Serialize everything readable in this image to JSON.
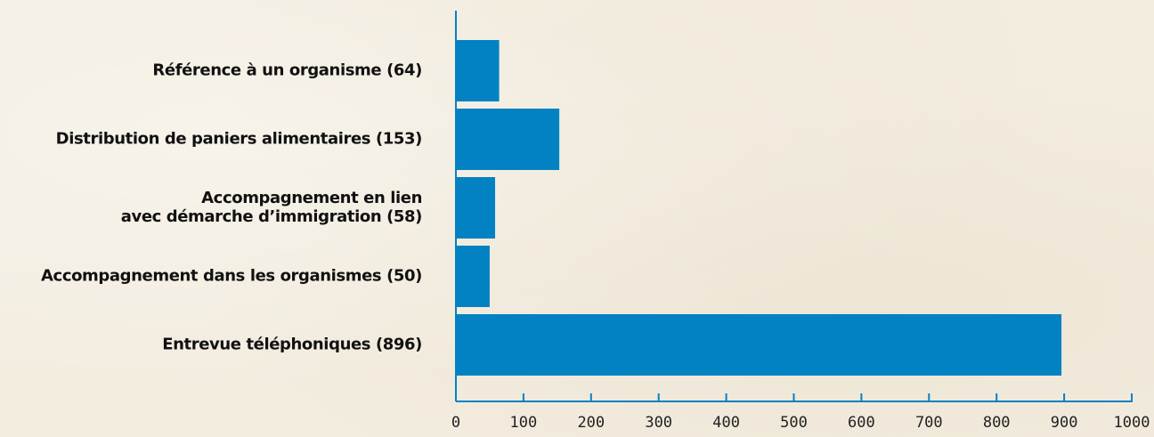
{
  "chart_data": {
    "type": "bar",
    "orientation": "horizontal",
    "categories": [
      [
        "Référence à un organisme (64)"
      ],
      [
        "Distribution de paniers alimentaires (153)"
      ],
      [
        "Accompagnement en lien",
        "avec démarche d’immigration (58)"
      ],
      [
        "Accompagnement dans les organismes (50)"
      ],
      [
        "Entrevue téléphoniques (896)"
      ]
    ],
    "values": [
      64,
      153,
      58,
      50,
      896
    ],
    "xlim": [
      0,
      1000
    ],
    "xticks": [
      "0",
      "100",
      "200",
      "300",
      "400",
      "500",
      "600",
      "700",
      "800",
      "900",
      "1000"
    ],
    "title": "",
    "xlabel": "",
    "ylabel": "",
    "grid": false,
    "colors": {
      "bar": "#0282c2",
      "axis": "#0282c2",
      "text": "#111111"
    }
  }
}
